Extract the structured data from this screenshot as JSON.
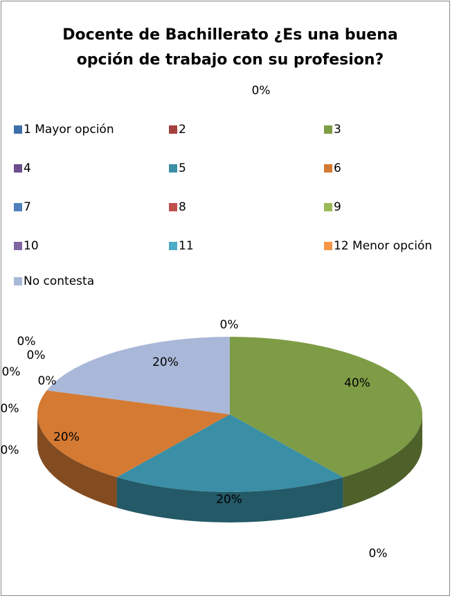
{
  "chart_data": {
    "type": "pie3d",
    "title": "Docente de Bachillerato ¿Es una buena opción de trabajo con su profesion?",
    "categories": [
      "1 Mayor opción",
      "2",
      "3",
      "4",
      "5",
      "6",
      "7",
      "8",
      "9",
      "10",
      "11",
      "12 Menor opción",
      "No contesta"
    ],
    "values": [
      0,
      0,
      40,
      0,
      20,
      20,
      0,
      0,
      0,
      0,
      0,
      0,
      20
    ],
    "value_labels": [
      "0%",
      "0%",
      "40%",
      "0%",
      "20%",
      "20%",
      "0%",
      "0%",
      "0%",
      "0%",
      "0%",
      "0%",
      "20%"
    ],
    "colors": [
      "#3F6FA8",
      "#A33F3C",
      "#7E9C45",
      "#6B4E8C",
      "#3A8FA6",
      "#D47A33",
      "#4F81BD",
      "#C0504D",
      "#9BBB59",
      "#8064A2",
      "#4BACC6",
      "#F79646",
      "#A9B8D8"
    ],
    "legend": "top"
  }
}
